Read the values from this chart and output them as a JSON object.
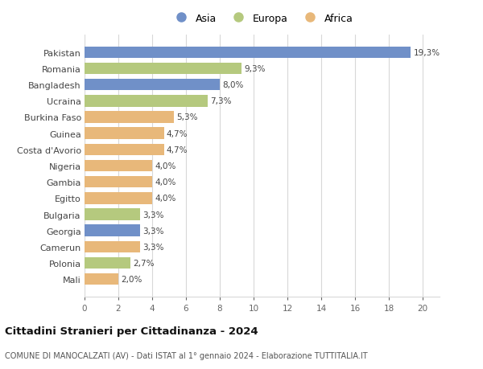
{
  "countries": [
    "Pakistan",
    "Romania",
    "Bangladesh",
    "Ucraina",
    "Burkina Faso",
    "Guinea",
    "Costa d'Avorio",
    "Nigeria",
    "Gambia",
    "Egitto",
    "Bulgaria",
    "Georgia",
    "Camerun",
    "Polonia",
    "Mali"
  ],
  "values": [
    19.3,
    9.3,
    8.0,
    7.3,
    5.3,
    4.7,
    4.7,
    4.0,
    4.0,
    4.0,
    3.3,
    3.3,
    3.3,
    2.7,
    2.0
  ],
  "labels": [
    "19,3%",
    "9,3%",
    "8,0%",
    "7,3%",
    "5,3%",
    "4,7%",
    "4,7%",
    "4,0%",
    "4,0%",
    "4,0%",
    "3,3%",
    "3,3%",
    "3,3%",
    "2,7%",
    "2,0%"
  ],
  "continents": [
    "Asia",
    "Europa",
    "Asia",
    "Europa",
    "Africa",
    "Africa",
    "Africa",
    "Africa",
    "Africa",
    "Africa",
    "Europa",
    "Asia",
    "Africa",
    "Europa",
    "Africa"
  ],
  "colors": {
    "Asia": "#7090c8",
    "Europa": "#b5c97e",
    "Africa": "#e8b87a"
  },
  "xlim": [
    0,
    21
  ],
  "xticks": [
    0,
    2,
    4,
    6,
    8,
    10,
    12,
    14,
    16,
    18,
    20
  ],
  "title": "Cittadini Stranieri per Cittadinanza - 2024",
  "subtitle": "COMUNE DI MANOCALZATI (AV) - Dati ISTAT al 1° gennaio 2024 - Elaborazione TUTTITALIA.IT",
  "background_color": "#ffffff",
  "grid_color": "#d8d8d8",
  "bar_height": 0.72,
  "label_fontsize": 7.5,
  "ytick_fontsize": 8.0,
  "xtick_fontsize": 7.5
}
